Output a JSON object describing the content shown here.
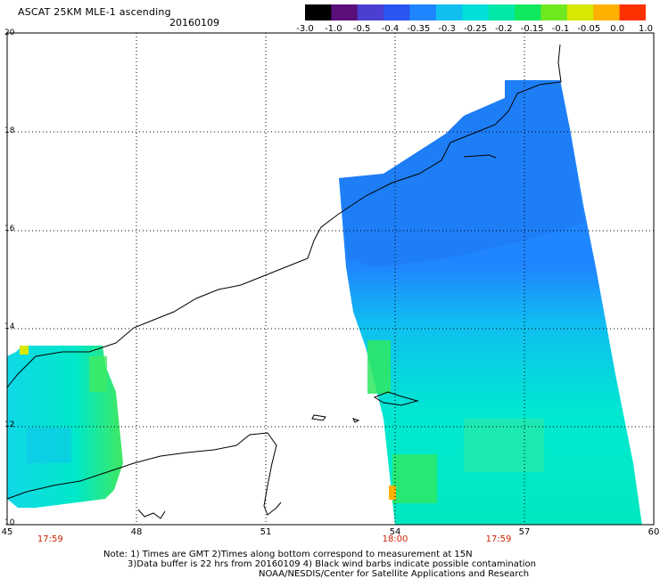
{
  "header": {
    "title": "ASCAT 25KM MLE-1 ascending",
    "date": "20160109"
  },
  "colorbar": {
    "labels": [
      "-3.0",
      "-1.0",
      "-0.5",
      "-0.4",
      "-0.35",
      "-0.3",
      "-0.25",
      "-0.2",
      "-0.15",
      "-0.1",
      "-0.05",
      "0.0",
      "1.0"
    ],
    "colors": [
      "#000000",
      "#5a0f7a",
      "#4a3fd0",
      "#2a55f0",
      "#1f86ff",
      "#10bff0",
      "#00e0d8",
      "#00e8a8",
      "#10e860",
      "#70e820",
      "#d8e800",
      "#ffb000",
      "#ff3000"
    ]
  },
  "axes": {
    "lat_labels": [
      "20",
      "18",
      "16",
      "14",
      "12",
      "10"
    ],
    "lon_labels": [
      "45",
      "48",
      "51",
      "54",
      "57",
      "60"
    ]
  },
  "times": [
    {
      "label": "17:59",
      "lon": 46
    },
    {
      "label": "18:00",
      "lon": 54
    },
    {
      "label": "17:59",
      "lon": 56.4
    }
  ],
  "notes": {
    "line1": "Note: 1) Times are GMT 2)Times along bottom correspond to measurement at 15N",
    "line2": "3)Data buffer is 22 hrs from 20160109 4) Black wind barbs indicate possible contamination",
    "line3": "NOAA/NESDIS/Center for Satellite Applications and Research"
  }
}
